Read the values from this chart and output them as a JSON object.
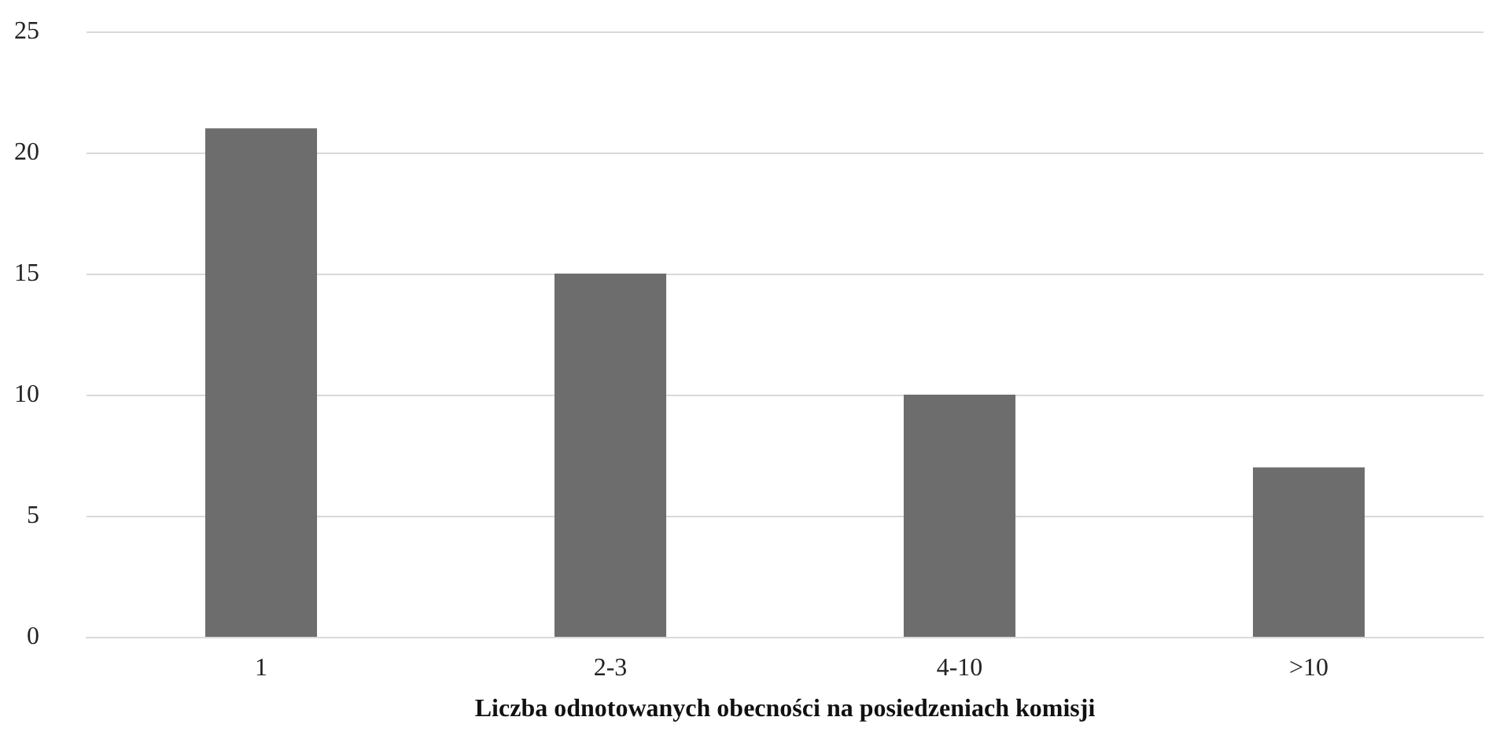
{
  "chart_data": {
    "type": "bar",
    "xlabel": "Liczba odnotowanych obecności na posiedzeniach komisji",
    "categories": [
      "1",
      "2-3",
      "4-10",
      ">10"
    ],
    "values": [
      21,
      15,
      10,
      7
    ],
    "color": "#6d6d6d",
    "ylim": [
      0,
      25
    ],
    "yticks": [
      0,
      5,
      10,
      15,
      20,
      25
    ],
    "grid": "y"
  }
}
